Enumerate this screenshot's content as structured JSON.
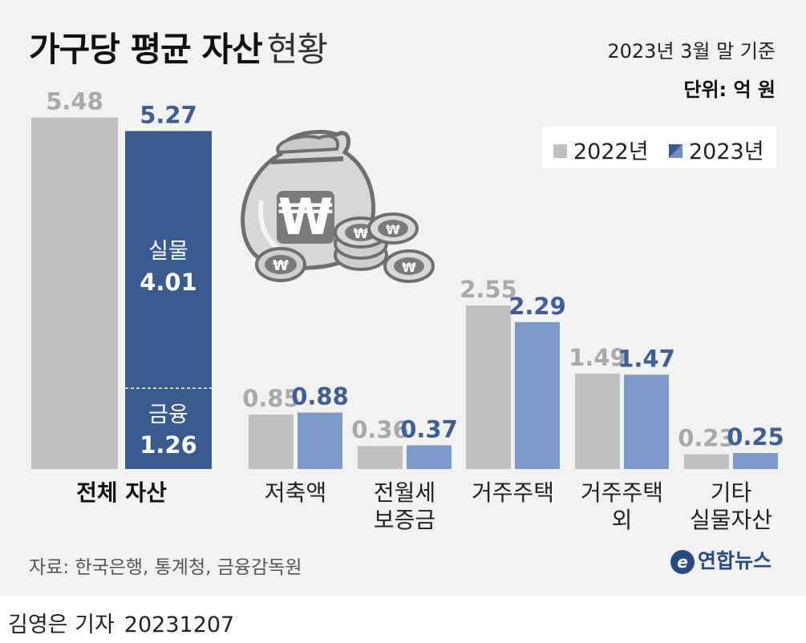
{
  "title": {
    "bold": "가구당 평균 자산",
    "light": "현황"
  },
  "date_note": "2023년 3월 말 기준",
  "unit_note": "단위: 억 원",
  "legend": [
    {
      "label": "2022년",
      "color": "#c0c0c0"
    },
    {
      "label": "2023년",
      "color": "#6f90c4"
    }
  ],
  "source": "자료: 한국은행, 통계청, 금융감독원",
  "logo": {
    "mark": "e",
    "name": "연합뉴스"
  },
  "byline": {
    "author": "김영은 기자",
    "date": "20231207"
  },
  "chart_data": {
    "type": "bar",
    "categories": [
      "전체 자산",
      "저축액",
      "전월세 보증금",
      "거주주택",
      "거주주택 외",
      "기타 실물자산"
    ],
    "category_lines": [
      [
        "전체 자산"
      ],
      [
        "저축액"
      ],
      [
        "전월세",
        "보증금"
      ],
      [
        "거주주택"
      ],
      [
        "거주주택",
        "외"
      ],
      [
        "기타",
        "실물자산"
      ]
    ],
    "series": [
      {
        "name": "2022년",
        "values": [
          5.48,
          0.85,
          0.36,
          2.55,
          1.49,
          0.23
        ],
        "color": "#c0c0c0",
        "label_color": "#a9a9a9"
      },
      {
        "name": "2023년",
        "values": [
          5.27,
          0.88,
          0.37,
          2.29,
          1.47,
          0.25
        ],
        "color": "#7c9bcb",
        "label_color": "#3d5f96"
      }
    ],
    "total_breakdown_2023": [
      {
        "label": "실물",
        "value": 4.01
      },
      {
        "label": "금융",
        "value": 1.26
      }
    ],
    "total_2023_color": "#3a5b8e"
  }
}
